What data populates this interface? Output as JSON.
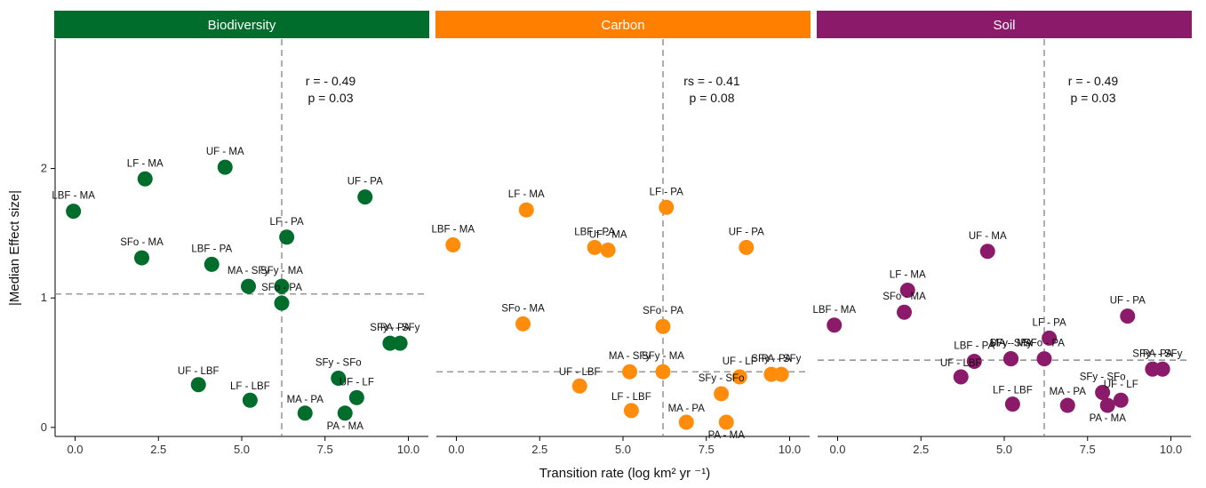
{
  "chart_data": {
    "type": "scatter",
    "xlabel": "Transition rate (log km² yr ⁻¹)",
    "ylabel": "|Median Effect size|",
    "xlim": [
      -0.6,
      10.6
    ],
    "ylim": [
      -0.07,
      3.0
    ],
    "x_ticks": [
      0,
      2.5,
      5,
      7.5,
      10
    ],
    "x_tick_labels": [
      "0.0",
      "2.5",
      "5.0",
      "7.5",
      "10.0"
    ],
    "y_ticks": [
      0,
      1,
      2
    ],
    "y_tick_labels": [
      "0",
      "1",
      "2"
    ],
    "grid": false,
    "legend": "none",
    "panels": [
      {
        "title": "Biodiversity",
        "strip_color": "#006d2c",
        "point_color": "#006d2c",
        "stat_lines": [
          "r = - 0.49",
          "p = 0.03"
        ],
        "vline_x": 6.2,
        "hline_y": 1.03,
        "points": [
          {
            "label": "LBF - MA",
            "x": -0.05,
            "y": 1.67
          },
          {
            "label": "LF - MA",
            "x": 2.1,
            "y": 1.92
          },
          {
            "label": "UF - MA",
            "x": 4.5,
            "y": 2.01
          },
          {
            "label": "UF - PA",
            "x": 8.7,
            "y": 1.78
          },
          {
            "label": "SFo - MA",
            "x": 2.0,
            "y": 1.31
          },
          {
            "label": "LBF - PA",
            "x": 4.1,
            "y": 1.26
          },
          {
            "label": "LF - PA",
            "x": 6.35,
            "y": 1.47
          },
          {
            "label": "MA - SFy",
            "x": 5.2,
            "y": 1.09
          },
          {
            "label": "SFy - MA",
            "x": 6.2,
            "y": 1.09
          },
          {
            "label": "SFo - PA",
            "x": 6.2,
            "y": 0.96
          },
          {
            "label": "PA - SFy",
            "x": 9.75,
            "y": 0.65
          },
          {
            "label": "SFy - PA",
            "x": 9.45,
            "y": 0.65
          },
          {
            "label": "SFy - SFo",
            "x": 7.9,
            "y": 0.38
          },
          {
            "label": "UF - LF",
            "x": 8.45,
            "y": 0.23
          },
          {
            "label": "UF - LBF",
            "x": 3.7,
            "y": 0.33
          },
          {
            "label": "LF - LBF",
            "x": 5.25,
            "y": 0.21
          },
          {
            "label": "MA - PA",
            "x": 6.9,
            "y": 0.11
          },
          {
            "label": "PA - MA",
            "x": 8.1,
            "y": 0.11
          }
        ]
      },
      {
        "title": "Carbon",
        "strip_color": "#ff7f00",
        "point_color": "#ff8c0a",
        "stat_lines": [
          "rs = - 0.41",
          "p = 0.08"
        ],
        "vline_x": 6.2,
        "hline_y": 0.43,
        "points": [
          {
            "label": "LBF - MA",
            "x": -0.1,
            "y": 1.41
          },
          {
            "label": "LF - MA",
            "x": 2.1,
            "y": 1.68
          },
          {
            "label": "LF - PA",
            "x": 6.3,
            "y": 1.7
          },
          {
            "label": "LBF - PA",
            "x": 4.15,
            "y": 1.39
          },
          {
            "label": "UF - MA",
            "x": 4.55,
            "y": 1.37
          },
          {
            "label": "UF - PA",
            "x": 8.7,
            "y": 1.39
          },
          {
            "label": "SFo - MA",
            "x": 2.0,
            "y": 0.8
          },
          {
            "label": "SFo - PA",
            "x": 6.2,
            "y": 0.78
          },
          {
            "label": "MA - SFy",
            "x": 5.2,
            "y": 0.43
          },
          {
            "label": "SFy - MA",
            "x": 6.2,
            "y": 0.43
          },
          {
            "label": "SFy - PA",
            "x": 9.45,
            "y": 0.41
          },
          {
            "label": "PA - SFy",
            "x": 9.75,
            "y": 0.41
          },
          {
            "label": "UF - LF",
            "x": 8.5,
            "y": 0.39
          },
          {
            "label": "UF - LBF",
            "x": 3.7,
            "y": 0.32
          },
          {
            "label": "SFy - SFo",
            "x": 7.95,
            "y": 0.26
          },
          {
            "label": "LF - LBF",
            "x": 5.25,
            "y": 0.13
          },
          {
            "label": "MA - PA",
            "x": 6.9,
            "y": 0.04
          },
          {
            "label": "PA - MA",
            "x": 8.1,
            "y": 0.04
          }
        ]
      },
      {
        "title": "Soil",
        "strip_color": "#8b1a6b",
        "point_color": "#8b1a6b",
        "stat_lines": [
          "r = - 0.49",
          "p = 0.03"
        ],
        "vline_x": 6.2,
        "hline_y": 0.52,
        "points": [
          {
            "label": "UF - MA",
            "x": 4.5,
            "y": 1.36
          },
          {
            "label": "LF - MA",
            "x": 2.1,
            "y": 1.06
          },
          {
            "label": "SFo - MA",
            "x": 2.0,
            "y": 0.89
          },
          {
            "label": "LBF - MA",
            "x": -0.1,
            "y": 0.79
          },
          {
            "label": "UF - PA",
            "x": 8.7,
            "y": 0.86
          },
          {
            "label": "LF - PA",
            "x": 6.35,
            "y": 0.69
          },
          {
            "label": "SFy - MA",
            "x": 5.2,
            "y": 0.53
          },
          {
            "label": "SFo - PA",
            "x": 6.2,
            "y": 0.53
          },
          {
            "label": "LBF - PA",
            "x": 4.1,
            "y": 0.51
          },
          {
            "label": "MA - SFy",
            "x": 5.2,
            "y": 0.53
          },
          {
            "label": "SFy - PA",
            "x": 9.45,
            "y": 0.45
          },
          {
            "label": "PA - SFy",
            "x": 9.75,
            "y": 0.45
          },
          {
            "label": "UF - LBF",
            "x": 3.7,
            "y": 0.39
          },
          {
            "label": "SFy - SFo",
            "x": 7.95,
            "y": 0.27
          },
          {
            "label": "UF - LF",
            "x": 8.5,
            "y": 0.21
          },
          {
            "label": "LF - LBF",
            "x": 5.25,
            "y": 0.18
          },
          {
            "label": "MA - PA",
            "x": 6.9,
            "y": 0.17
          },
          {
            "label": "PA - MA",
            "x": 8.1,
            "y": 0.17
          }
        ]
      }
    ]
  }
}
